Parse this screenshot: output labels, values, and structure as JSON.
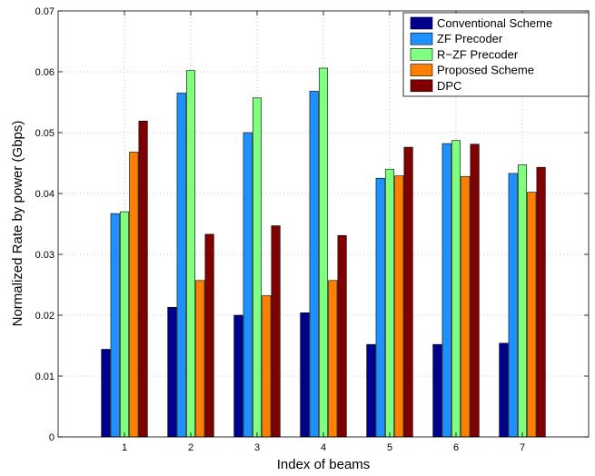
{
  "chart_data": {
    "type": "bar",
    "title": "",
    "xlabel": "Index of beams",
    "ylabel": "Normalized Rate by power (Gbps)",
    "categories": [
      "1",
      "2",
      "3",
      "4",
      "5",
      "6",
      "7"
    ],
    "ylim": [
      0,
      0.07
    ],
    "yticks": [
      "0",
      "0.01",
      "0.02",
      "0.03",
      "0.04",
      "0.05",
      "0.06",
      "0.07"
    ],
    "grid": true,
    "legend_position": "top-right",
    "series": [
      {
        "name": "Conventional Scheme",
        "color": "#00008f",
        "values": [
          0.0144,
          0.0213,
          0.02,
          0.0204,
          0.0152,
          0.0152,
          0.0154
        ]
      },
      {
        "name": "ZF Precoder",
        "color": "#1e90ff",
        "values": [
          0.0367,
          0.0565,
          0.05,
          0.0568,
          0.0425,
          0.0482,
          0.0433
        ]
      },
      {
        "name": "R−ZF Precoder",
        "color": "#80ff80",
        "values": [
          0.037,
          0.0602,
          0.0557,
          0.0606,
          0.044,
          0.0487,
          0.0447
        ]
      },
      {
        "name": "Proposed Scheme",
        "color": "#ff8000",
        "values": [
          0.0468,
          0.0257,
          0.0232,
          0.0257,
          0.0429,
          0.0428,
          0.0402
        ]
      },
      {
        "name": "DPC",
        "color": "#800000",
        "values": [
          0.0519,
          0.0333,
          0.0347,
          0.0331,
          0.0476,
          0.0481,
          0.0443
        ]
      }
    ]
  }
}
